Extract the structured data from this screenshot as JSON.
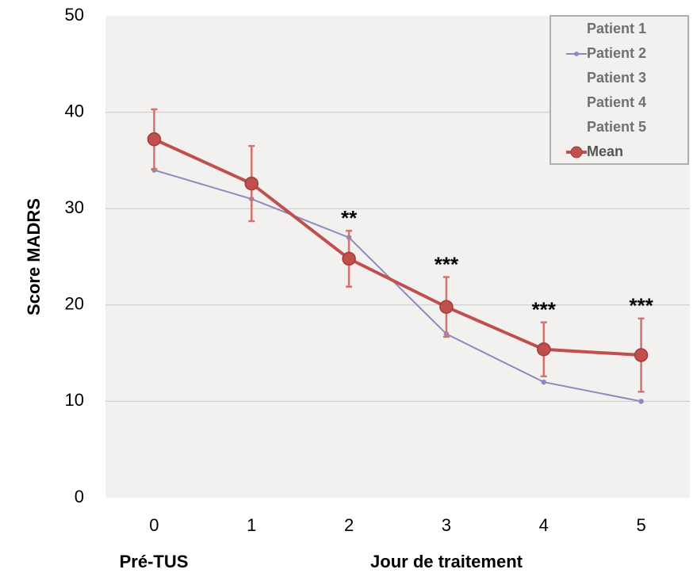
{
  "chart_data": {
    "type": "line",
    "ylabel": "Score MADRS",
    "xlabel": "Jour de traitement",
    "x_note": "Pré-TUS",
    "x": [
      0,
      1,
      2,
      3,
      4,
      5
    ],
    "xlim": [
      -0.5,
      5.5
    ],
    "xticks": [
      0,
      1,
      2,
      3,
      4,
      5
    ],
    "ylim": [
      0,
      50
    ],
    "yticks": [
      0,
      10,
      20,
      30,
      40,
      50
    ],
    "grid": true,
    "legend": "upper right",
    "series": [
      {
        "name": "Patient 1",
        "values": [
          null,
          null,
          null,
          null,
          null,
          null
        ]
      },
      {
        "name": "Patient 2",
        "color": "#8b8bbd",
        "values": [
          34,
          31,
          27,
          17,
          12,
          10
        ]
      },
      {
        "name": "Patient 3",
        "values": [
          null,
          null,
          null,
          null,
          null,
          null
        ]
      },
      {
        "name": "Patient 4",
        "values": [
          null,
          null,
          null,
          null,
          null,
          null
        ]
      },
      {
        "name": "Patient 5",
        "values": [
          null,
          null,
          null,
          null,
          null,
          null
        ]
      },
      {
        "name": "Mean",
        "color": "#c0504d",
        "values": [
          37.2,
          32.6,
          24.8,
          19.8,
          15.4,
          14.8
        ],
        "errors": [
          3.1,
          3.9,
          2.9,
          3.1,
          2.8,
          3.8
        ]
      }
    ],
    "annotations": [
      {
        "text": "**",
        "x": 2
      },
      {
        "text": "***",
        "x": 3
      },
      {
        "text": "***",
        "x": 4
      },
      {
        "text": "***",
        "x": 5
      }
    ]
  }
}
